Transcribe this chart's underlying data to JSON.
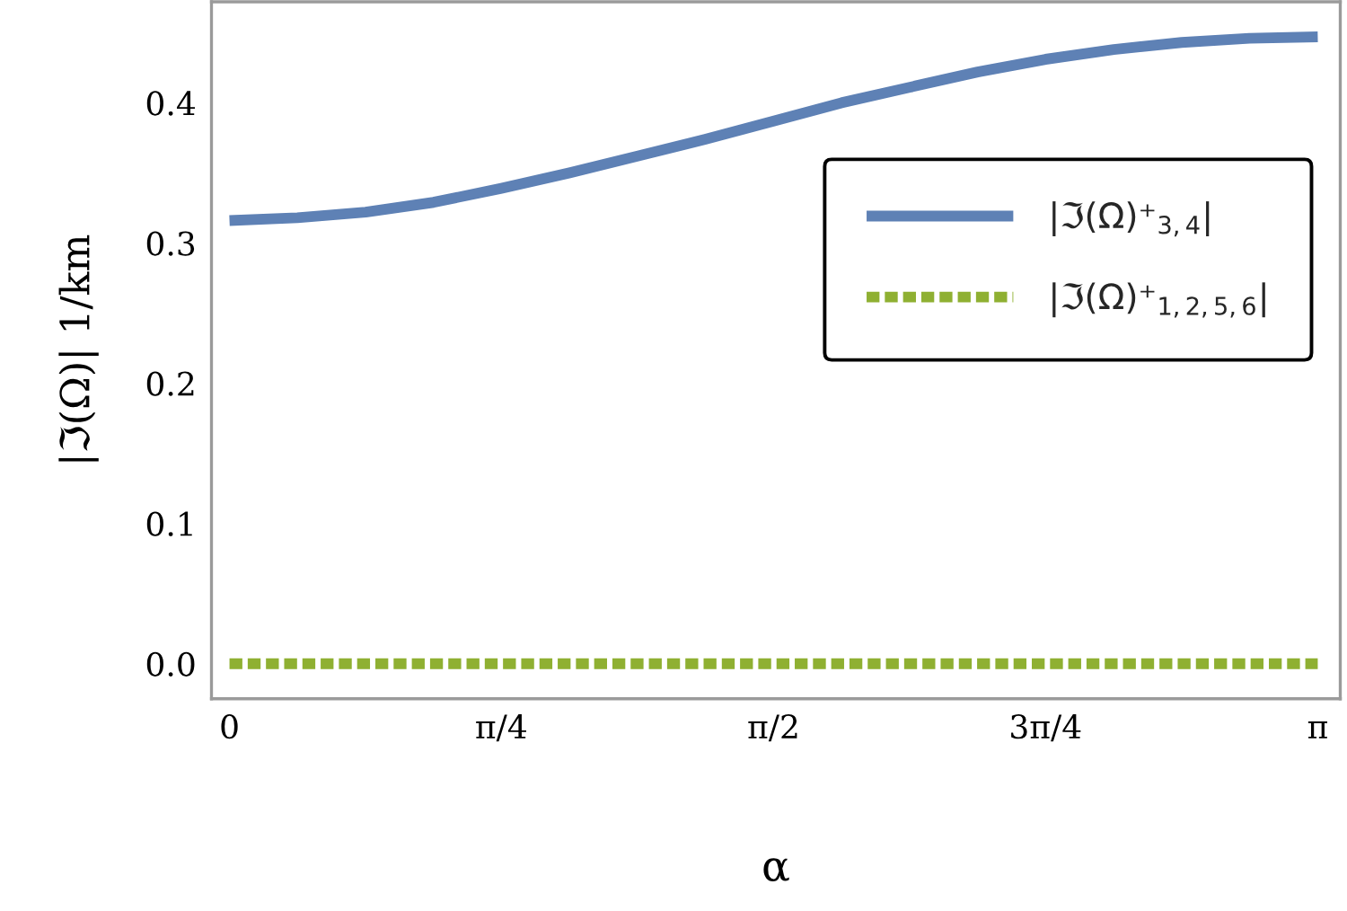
{
  "chart_data": {
    "type": "line",
    "xlabel": "α",
    "ylabel": "|ℑ(Ω)| 1/km",
    "x": [
      0,
      0.196,
      0.393,
      0.589,
      0.785,
      0.982,
      1.178,
      1.374,
      1.571,
      1.767,
      1.963,
      2.16,
      2.356,
      2.553,
      2.749,
      2.945,
      3.142
    ],
    "series": [
      {
        "name": "|ℑ(Ω)⁺$_{3,4}$|",
        "color": "#5e81b5",
        "line_style": "solid",
        "values": [
          0.316,
          0.318,
          0.322,
          0.329,
          0.339,
          0.35,
          0.362,
          0.374,
          0.387,
          0.4,
          0.411,
          0.422,
          0.431,
          0.438,
          0.443,
          0.446,
          0.447
        ]
      },
      {
        "name": "|ℑ(Ω)⁺$_{1,2,5,6}$|",
        "color": "#8fb032",
        "line_style": "dashed",
        "values": [
          0,
          0,
          0,
          0,
          0,
          0,
          0,
          0,
          0,
          0,
          0,
          0,
          0,
          0,
          0,
          0,
          0
        ]
      }
    ],
    "xlim": [
      -0.052,
      3.207
    ],
    "ylim": [
      -0.025,
      0.472
    ],
    "xticks": [
      0,
      {
        "value": 0.785,
        "label": "π/4"
      },
      {
        "value": 1.571,
        "label": "π/2"
      },
      {
        "value": 2.356,
        "label": "3π/4"
      },
      {
        "value": 3.142,
        "label": "π"
      }
    ],
    "yticks": [
      {
        "value": 0,
        "label": "0.0"
      },
      0.1,
      0.2,
      0.3,
      0.4
    ],
    "legend": "right",
    "grid": false
  }
}
